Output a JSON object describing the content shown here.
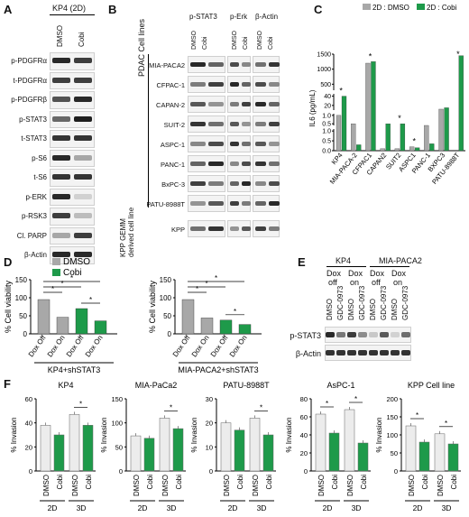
{
  "panels": {
    "A": {
      "letter": "A",
      "title": "KP4 (2D)",
      "columns": [
        "DMSO",
        "Cobi"
      ],
      "rows": [
        "p-PDGFRα",
        "t-PDGFRα",
        "p-PDGFRβ",
        "p-STAT3",
        "t-STAT3",
        "p-S6",
        "t-S6",
        "p-ERK",
        "p-RSK3",
        "Cl. PARP",
        "β-Actin"
      ],
      "band_intensity": [
        [
          0.9,
          0.8
        ],
        [
          0.8,
          0.8
        ],
        [
          0.7,
          0.9
        ],
        [
          0.6,
          0.95
        ],
        [
          0.85,
          0.85
        ],
        [
          0.9,
          0.3
        ],
        [
          0.85,
          0.85
        ],
        [
          0.9,
          0.1
        ],
        [
          0.8,
          0.2
        ],
        [
          0.3,
          0.8
        ],
        [
          0.9,
          0.9
        ]
      ]
    },
    "B": {
      "letter": "B",
      "antibodies": [
        "p-STAT3",
        "p-Erk",
        "β-Actin"
      ],
      "columns": [
        "DMSO",
        "Cobi"
      ],
      "group_pdac": "PDAC Cell lines",
      "group_kpp": "KPP GEMM derived cell line",
      "cell_lines": [
        "MIA-PACA2",
        "CFPAC-1",
        "CAPAN-2",
        "SUIT-2",
        "ASPC-1",
        "PANC-1",
        "BxPC-3",
        "PATU-8988T",
        "KPP"
      ]
    },
    "C": {
      "letter": "C",
      "legend": [
        "2D : DMSO",
        "2D : Cobi"
      ],
      "colors": {
        "dmso": "#a8a8a8",
        "cobi": "#1e9a4a"
      },
      "chart_data": {
        "type": "bar",
        "ylabel": "IL6 (pg/mL)",
        "categories": [
          "KP4",
          "MIA-PACA-2",
          "CFPAC1",
          "CAPAN2",
          "SUIT2",
          "ASPC1",
          "PANC-1",
          "BXPC3",
          "PATU-8988T"
        ],
        "series": [
          {
            "name": "2D : DMSO",
            "values": [
              1.0,
              0.5,
              1200,
              0.1,
              0.1,
              0.2,
              0.4,
              12,
              50
            ]
          },
          {
            "name": "2D : Cobi",
            "values": [
              40,
              0.3,
              1250,
              0.5,
              0.5,
              0.15,
              0.35,
              15,
              1450
            ]
          }
        ],
        "ticks_top": [
          "1500",
          "1000",
          "500"
        ],
        "ticks_mid": [
          "40",
          "20"
        ],
        "ticks_mid2": [
          "1.0",
          "0.5"
        ],
        "ticks_low": [
          "1.0",
          "0.5",
          "0.0"
        ],
        "ylim": [
          0,
          1500
        ],
        "significance": [
          "*",
          "*",
          "*",
          "*",
          "*"
        ]
      }
    },
    "D": {
      "letter": "D",
      "legend": [
        "DMSO",
        "Cobi"
      ],
      "charts": [
        {
          "chart_data": {
            "type": "bar",
            "ylabel": "% Cell viability",
            "xlabel": "KP4+shSTAT3",
            "categories": [
              "Dox Off",
              "Dox On",
              "Dox Off",
              "Dox On"
            ],
            "values": [
              95,
              46,
              70,
              36
            ],
            "series_of_bar": [
              "DMSO",
              "DMSO",
              "Cobi",
              "Cobi"
            ],
            "yticks": [
              "0",
              "50",
              "100",
              "150"
            ],
            "ylim": [
              0,
              150
            ]
          }
        },
        {
          "chart_data": {
            "type": "bar",
            "ylabel": "% Cell viability",
            "xlabel": "MIA-PACA2+shSTAT3",
            "categories": [
              "Dox Off",
              "Dox On",
              "Dox Off",
              "Dox On"
            ],
            "values": [
              95,
              44,
              38,
              26
            ],
            "series_of_bar": [
              "DMSO",
              "DMSO",
              "Cobi",
              "Cobi"
            ],
            "yticks": [
              "0",
              "50",
              "100",
              "150"
            ],
            "ylim": [
              0,
              150
            ]
          }
        }
      ]
    },
    "E": {
      "letter": "E",
      "groups": [
        "KP4",
        "MIA-PACA2"
      ],
      "dox": [
        "Dox off",
        "Dox on",
        "Dox off",
        "Dox on"
      ],
      "lanes": [
        "DMSO",
        "GDC-0973",
        "DMSO",
        "GDC-0973",
        "DMSO",
        "GDC-0973",
        "DMSO",
        "GDC-0973"
      ],
      "rows": [
        "p-STAT3",
        "β-Actin"
      ]
    },
    "F": {
      "letter": "F",
      "ylabel": "% Invasion",
      "xlabels": [
        "DMSO",
        "Cobi",
        "DMSO",
        "Cobi"
      ],
      "conditions": [
        "2D",
        "3D"
      ],
      "charts": [
        {
          "title": "KP4",
          "chart_data": {
            "type": "bar",
            "values": [
              38,
              30,
              47,
              38
            ],
            "yticks": [
              "0",
              "20",
              "40",
              "60"
            ],
            "ylim": [
              0,
              60
            ]
          }
        },
        {
          "title": "MIA-PaCa2",
          "chart_data": {
            "type": "bar",
            "values": [
              73,
              68,
              110,
              88
            ],
            "yticks": [
              "0",
              "50",
              "100",
              "150"
            ],
            "ylim": [
              0,
              150
            ]
          }
        },
        {
          "title": "PATU-8988T",
          "chart_data": {
            "type": "bar",
            "values": [
              20,
              17,
              22,
              15
            ],
            "yticks": [
              "0",
              "10",
              "20",
              "30"
            ],
            "ylim": [
              0,
              30
            ]
          }
        },
        {
          "title": "AsPC-1",
          "chart_data": {
            "type": "bar",
            "values": [
              63,
              42,
              68,
              31
            ],
            "yticks": [
              "0",
              "20",
              "40",
              "60",
              "80"
            ],
            "ylim": [
              0,
              80
            ]
          }
        },
        {
          "title": "KPP Cell line",
          "chart_data": {
            "type": "bar",
            "values": [
              125,
              80,
              103,
              75
            ],
            "yticks": [
              "0",
              "50",
              "100",
              "150",
              "200"
            ],
            "ylim": [
              0,
              200
            ]
          }
        }
      ]
    }
  }
}
